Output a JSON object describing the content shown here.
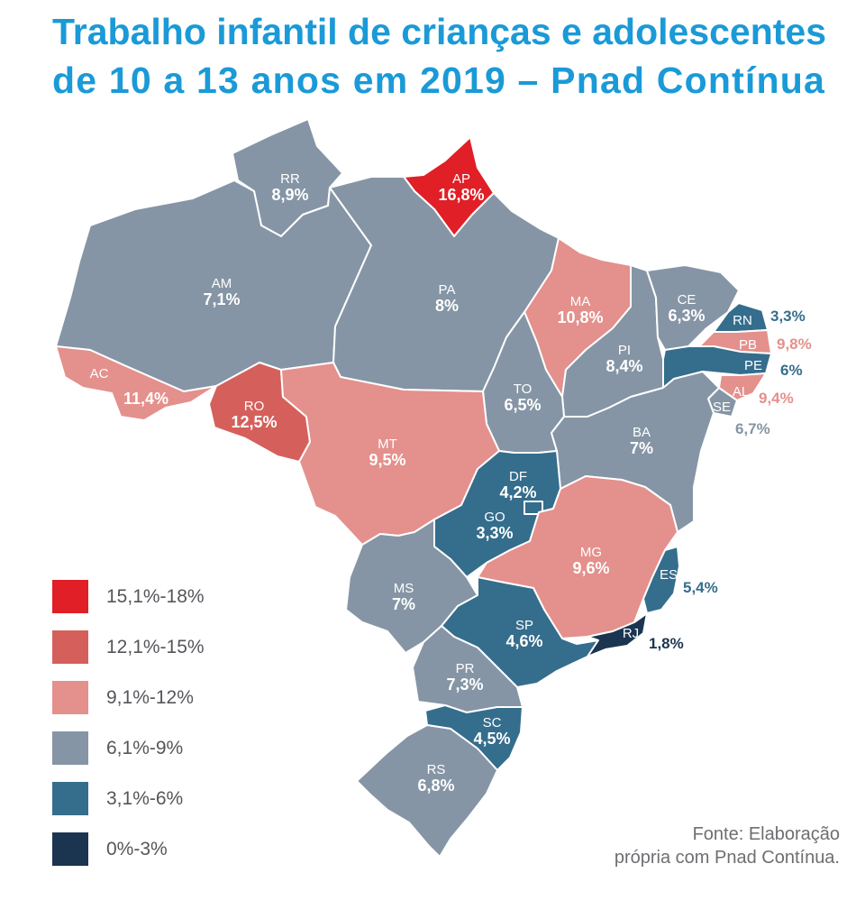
{
  "title": {
    "line1": "Trabalho infantil de crianças e adolescentes",
    "line2": "de 10 a 13 anos em 2019 – Pnad Contínua"
  },
  "colors": {
    "title": "#1a9ad7",
    "class_15_18": "#e01f26",
    "class_12_15": "#d5605b",
    "class_9_12": "#e4908c",
    "class_6_9": "#8595a5",
    "class_3_6": "#356d8c",
    "class_0_3": "#1b3550"
  },
  "states": {
    "RR": {
      "code": "RR",
      "value": "8,9%"
    },
    "AP": {
      "code": "AP",
      "value": "16,8%"
    },
    "AM": {
      "code": "AM",
      "value": "7,1%"
    },
    "PA": {
      "code": "PA",
      "value": "8%"
    },
    "MA": {
      "code": "MA",
      "value": "10,8%"
    },
    "CE": {
      "code": "CE",
      "value": "6,3%"
    },
    "RN": {
      "code": "RN",
      "value": "3,3%"
    },
    "PB": {
      "code": "PB",
      "value": "9,8%"
    },
    "PE": {
      "code": "PE",
      "value": "6%"
    },
    "AL": {
      "code": "AL",
      "value": "9,4%"
    },
    "SE": {
      "code": "SE",
      "value": "6,7%"
    },
    "PI": {
      "code": "PI",
      "value": "8,4%"
    },
    "AC": {
      "code": "AC",
      "value": "11,4%"
    },
    "RO": {
      "code": "RO",
      "value": "12,5%"
    },
    "TO": {
      "code": "TO",
      "value": "6,5%"
    },
    "BA": {
      "code": "BA",
      "value": "7%"
    },
    "MT": {
      "code": "MT",
      "value": "9,5%"
    },
    "DF": {
      "code": "DF",
      "value": "4,2%"
    },
    "GO": {
      "code": "GO",
      "value": "3,3%"
    },
    "MG": {
      "code": "MG",
      "value": "9,6%"
    },
    "ES": {
      "code": "ES",
      "value": "5,4%"
    },
    "MS": {
      "code": "MS",
      "value": "7%"
    },
    "SP": {
      "code": "SP",
      "value": "4,6%"
    },
    "RJ": {
      "code": "RJ",
      "value": "1,8%"
    },
    "PR": {
      "code": "PR",
      "value": "7,3%"
    },
    "SC": {
      "code": "SC",
      "value": "4,5%"
    },
    "RS": {
      "code": "RS",
      "value": "6,8%"
    }
  },
  "legend": [
    {
      "label": "15,1%-18%",
      "color": "#e01f26"
    },
    {
      "label": "12,1%-15%",
      "color": "#d5605b"
    },
    {
      "label": "9,1%-12%",
      "color": "#e4908c"
    },
    {
      "label": "6,1%-9%",
      "color": "#8595a5"
    },
    {
      "label": "3,1%-6%",
      "color": "#356d8c"
    },
    {
      "label": "0%-3%",
      "color": "#1b3550"
    }
  ],
  "source": {
    "line1": "Fonte: Elaboração",
    "line2": "própria com Pnad Contínua."
  }
}
